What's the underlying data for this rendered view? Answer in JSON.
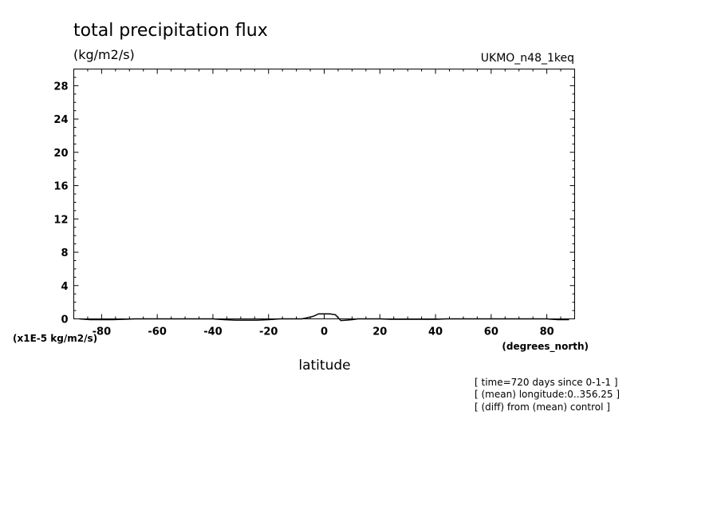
{
  "chart_data": {
    "type": "line",
    "title": "total precipitation flux",
    "units_label": "(kg/m2/s)",
    "dataset_label": "UKMO_n48_1keq",
    "xlabel": "latitude",
    "xunit_label": "(degrees_north)",
    "yscale_label": "(x1E-5 kg/m2/s)",
    "xlim": [
      -90,
      90
    ],
    "ylim": [
      0,
      30
    ],
    "xticks": [
      -80,
      -60,
      -40,
      -20,
      0,
      20,
      40,
      60,
      80
    ],
    "yticks": [
      0,
      4,
      8,
      12,
      16,
      20,
      24,
      28
    ],
    "x_tick_labels": [
      "-80",
      "-60",
      "-40",
      "-20",
      "0",
      "20",
      "40",
      "60",
      "80"
    ],
    "y_tick_labels": [
      "0",
      "4",
      "8",
      "12",
      "16",
      "20",
      "24",
      "28"
    ],
    "grid": false,
    "series": [
      {
        "x": [
          -88,
          -84,
          -80,
          -76,
          -72,
          -68,
          -64,
          -60,
          -56,
          -52,
          -48,
          -44,
          -40,
          -36,
          -32,
          -28,
          -24,
          -20,
          -16,
          -12,
          -8,
          -4,
          -2,
          0,
          2,
          4,
          6,
          8,
          10,
          12,
          16,
          20,
          24,
          28,
          32,
          36,
          40,
          44,
          48,
          52,
          56,
          60,
          64,
          68,
          72,
          76,
          80,
          84,
          88
        ],
        "values": [
          0,
          -0.1,
          -0.1,
          -0.1,
          -0.05,
          0,
          0,
          0,
          0,
          0,
          0,
          0,
          0,
          -0.1,
          -0.15,
          -0.15,
          -0.15,
          -0.1,
          0,
          0,
          0,
          0.3,
          0.6,
          0.6,
          0.6,
          0.5,
          -0.2,
          -0.15,
          -0.1,
          0,
          0,
          0,
          -0.05,
          -0.05,
          -0.05,
          -0.05,
          -0.05,
          0,
          0,
          0,
          0,
          0,
          0,
          0,
          0,
          0,
          0,
          -0.1,
          -0.1
        ]
      }
    ],
    "annotations": [
      "[ time=720 days since 0-1-1 ]",
      "[ (mean) longitude:0..356.25 ]",
      "[ (diff) from (mean) control ]"
    ]
  }
}
